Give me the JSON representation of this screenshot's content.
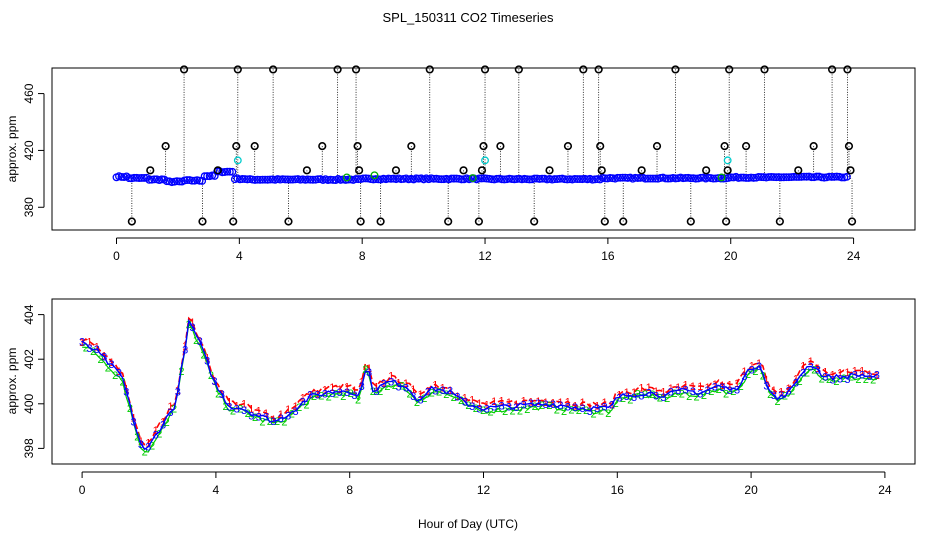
{
  "chart_data": [
    {
      "type": "scatter",
      "panel": "top",
      "title": "SPL_150311  CO2 Timeseries",
      "xlabel": "",
      "ylabel": "approx. ppm",
      "xlim": [
        -2.1,
        26.0
      ],
      "ylim": [
        364,
        478
      ],
      "xticks": [
        0,
        4,
        8,
        12,
        16,
        20,
        24
      ],
      "yticks": [
        380,
        420,
        460
      ],
      "grid": false,
      "series": [
        {
          "name": "CO2 (blue circles)",
          "color": "#0000ff",
          "baseline_segments": [
            [
              0,
              0.4,
              401.5
            ],
            [
              0.4,
              1.0,
              400.5
            ],
            [
              1.0,
              1.6,
              399.5
            ],
            [
              1.6,
              2.2,
              398.0
            ],
            [
              2.2,
              2.8,
              398.8
            ],
            [
              2.8,
              3.2,
              402.0
            ],
            [
              3.2,
              3.8,
              405.0
            ],
            [
              3.8,
              4.2,
              400.0
            ],
            [
              4.2,
              8.0,
              399.5
            ],
            [
              8.0,
              12.0,
              400.0
            ],
            [
              12.0,
              15.8,
              399.8
            ],
            [
              15.8,
              20.0,
              400.5
            ],
            [
              20.0,
              21.5,
              401.0
            ],
            [
              21.5,
              23.8,
              401.2
            ]
          ]
        },
        {
          "name": "Outliers (black circles)",
          "color": "#000000",
          "points": [
            [
              0.5,
              370
            ],
            [
              1.1,
              406
            ],
            [
              1.6,
              423
            ],
            [
              2.2,
              477
            ],
            [
              2.8,
              370
            ],
            [
              3.3,
              406
            ],
            [
              3.8,
              370
            ],
            [
              3.9,
              423
            ],
            [
              3.95,
              477
            ],
            [
              4.5,
              423
            ],
            [
              5.1,
              477
            ],
            [
              5.6,
              370
            ],
            [
              6.2,
              406
            ],
            [
              6.7,
              423
            ],
            [
              7.2,
              477
            ],
            [
              7.8,
              477
            ],
            [
              7.85,
              423
            ],
            [
              7.9,
              406
            ],
            [
              7.95,
              370
            ],
            [
              8.6,
              370
            ],
            [
              9.1,
              406
            ],
            [
              9.6,
              423
            ],
            [
              10.2,
              477
            ],
            [
              10.8,
              370
            ],
            [
              11.3,
              406
            ],
            [
              11.8,
              370
            ],
            [
              11.9,
              406
            ],
            [
              11.95,
              423
            ],
            [
              12.0,
              477
            ],
            [
              12.5,
              423
            ],
            [
              13.1,
              477
            ],
            [
              13.6,
              370
            ],
            [
              14.1,
              406
            ],
            [
              14.7,
              423
            ],
            [
              15.2,
              477
            ],
            [
              15.7,
              477
            ],
            [
              15.75,
              423
            ],
            [
              15.8,
              406
            ],
            [
              15.9,
              370
            ],
            [
              16.5,
              370
            ],
            [
              17.1,
              406
            ],
            [
              17.6,
              423
            ],
            [
              18.2,
              477
            ],
            [
              18.7,
              370
            ],
            [
              19.2,
              406
            ],
            [
              19.8,
              423
            ],
            [
              19.85,
              370
            ],
            [
              19.9,
              406
            ],
            [
              19.95,
              477
            ],
            [
              20.5,
              423
            ],
            [
              21.1,
              477
            ],
            [
              21.6,
              370
            ],
            [
              22.2,
              406
            ],
            [
              22.7,
              423
            ],
            [
              23.3,
              477
            ],
            [
              23.8,
              477
            ],
            [
              23.85,
              423
            ],
            [
              23.9,
              406
            ],
            [
              23.95,
              370
            ]
          ]
        },
        {
          "name": "Cyan flagged",
          "color": "#00cccc",
          "points": [
            [
              3.95,
              413
            ],
            [
              12.0,
              413
            ],
            [
              19.9,
              413
            ]
          ]
        }
      ]
    },
    {
      "type": "line",
      "panel": "bottom",
      "title": "",
      "xlabel": "Hour of Day (UTC)",
      "ylabel": "approx. ppm",
      "xlim": [
        -0.9,
        24.9
      ],
      "ylim": [
        397.3,
        404.7
      ],
      "xticks": [
        0,
        4,
        8,
        12,
        16,
        20,
        24
      ],
      "yticks": [
        398,
        400,
        402,
        404
      ],
      "grid": false,
      "series": [
        {
          "name": "1",
          "color": "#ff0000",
          "marker": "1"
        },
        {
          "name": "2",
          "color": "#00cc00",
          "marker": "2"
        },
        {
          "name": "3",
          "color": "#0000ff",
          "marker": "3"
        }
      ],
      "profile_anchors": [
        [
          0.0,
          402.7
        ],
        [
          0.4,
          402.4
        ],
        [
          0.8,
          401.8
        ],
        [
          1.2,
          401.2
        ],
        [
          1.5,
          399.5
        ],
        [
          1.7,
          398.4
        ],
        [
          1.9,
          397.8
        ],
        [
          2.2,
          398.6
        ],
        [
          2.5,
          399.3
        ],
        [
          2.8,
          400.0
        ],
        [
          3.0,
          401.8
        ],
        [
          3.2,
          403.7
        ],
        [
          3.5,
          402.8
        ],
        [
          3.8,
          401.6
        ],
        [
          4.0,
          400.8
        ],
        [
          4.4,
          399.9
        ],
        [
          4.8,
          399.8
        ],
        [
          5.2,
          399.5
        ],
        [
          5.8,
          399.2
        ],
        [
          6.3,
          399.7
        ],
        [
          6.8,
          400.3
        ],
        [
          7.3,
          400.5
        ],
        [
          7.8,
          400.6
        ],
        [
          8.0,
          400.6
        ],
        [
          8.3,
          400.3
        ],
        [
          8.5,
          401.8
        ],
        [
          8.7,
          400.6
        ],
        [
          9.2,
          401.0
        ],
        [
          9.7,
          400.8
        ],
        [
          10.0,
          400.2
        ],
        [
          10.5,
          400.7
        ],
        [
          11.0,
          400.5
        ],
        [
          11.5,
          400.0
        ],
        [
          12.0,
          399.8
        ],
        [
          13.0,
          399.9
        ],
        [
          14.0,
          400.0
        ],
        [
          15.0,
          399.8
        ],
        [
          15.8,
          399.8
        ],
        [
          16.0,
          400.3
        ],
        [
          16.8,
          400.5
        ],
        [
          17.5,
          400.4
        ],
        [
          18.0,
          400.6
        ],
        [
          18.5,
          400.5
        ],
        [
          19.0,
          400.8
        ],
        [
          19.5,
          400.6
        ],
        [
          19.8,
          401.2
        ],
        [
          20.0,
          401.6
        ],
        [
          20.3,
          401.8
        ],
        [
          20.5,
          400.6
        ],
        [
          20.8,
          400.2
        ],
        [
          21.2,
          400.6
        ],
        [
          21.5,
          401.4
        ],
        [
          21.8,
          401.8
        ],
        [
          22.2,
          401.2
        ],
        [
          22.7,
          401.2
        ],
        [
          23.2,
          401.3
        ],
        [
          23.8,
          401.2
        ]
      ]
    }
  ]
}
